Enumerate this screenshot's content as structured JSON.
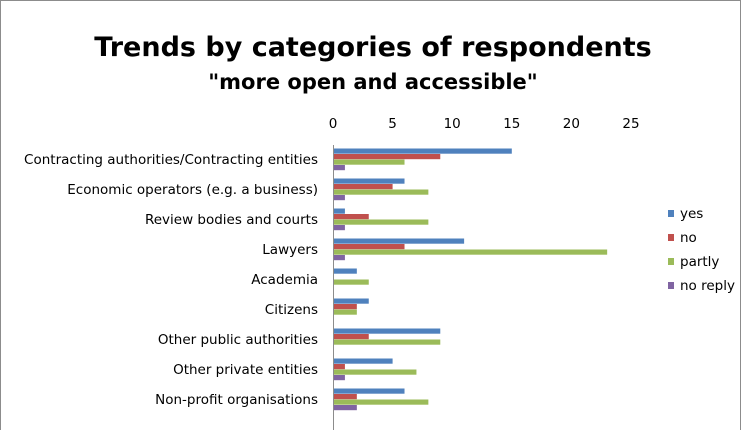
{
  "chart_data": {
    "type": "bar",
    "orientation": "horizontal",
    "title": "Trends by categories of respondents",
    "subtitle": "\"more open and accessible\"",
    "categories": [
      "Contracting authorities/Contracting entities",
      "Economic operators (e.g. a business)",
      "Review bodies and courts",
      "Lawyers",
      "Academia",
      "Citizens",
      "Other public authorities",
      "Other private entities",
      "Non-profit organisations"
    ],
    "series": [
      {
        "name": "yes",
        "color": "#4f81bd",
        "values": [
          15,
          6,
          1,
          11,
          2,
          3,
          9,
          5,
          6
        ]
      },
      {
        "name": "no",
        "color": "#c0504d",
        "values": [
          9,
          5,
          3,
          6,
          0,
          2,
          3,
          1,
          2
        ]
      },
      {
        "name": "partly",
        "color": "#9bbb59",
        "values": [
          6,
          8,
          8,
          23,
          3,
          2,
          9,
          7,
          8
        ]
      },
      {
        "name": "no reply",
        "color": "#8064a2",
        "values": [
          1,
          1,
          1,
          1,
          0,
          0,
          0,
          1,
          2
        ]
      }
    ],
    "xlim": [
      0,
      25
    ],
    "xticks": [
      "0",
      "5",
      "10",
      "15",
      "20",
      "25"
    ],
    "x_axis_position": "top",
    "grid": false,
    "legend_position": "right"
  }
}
